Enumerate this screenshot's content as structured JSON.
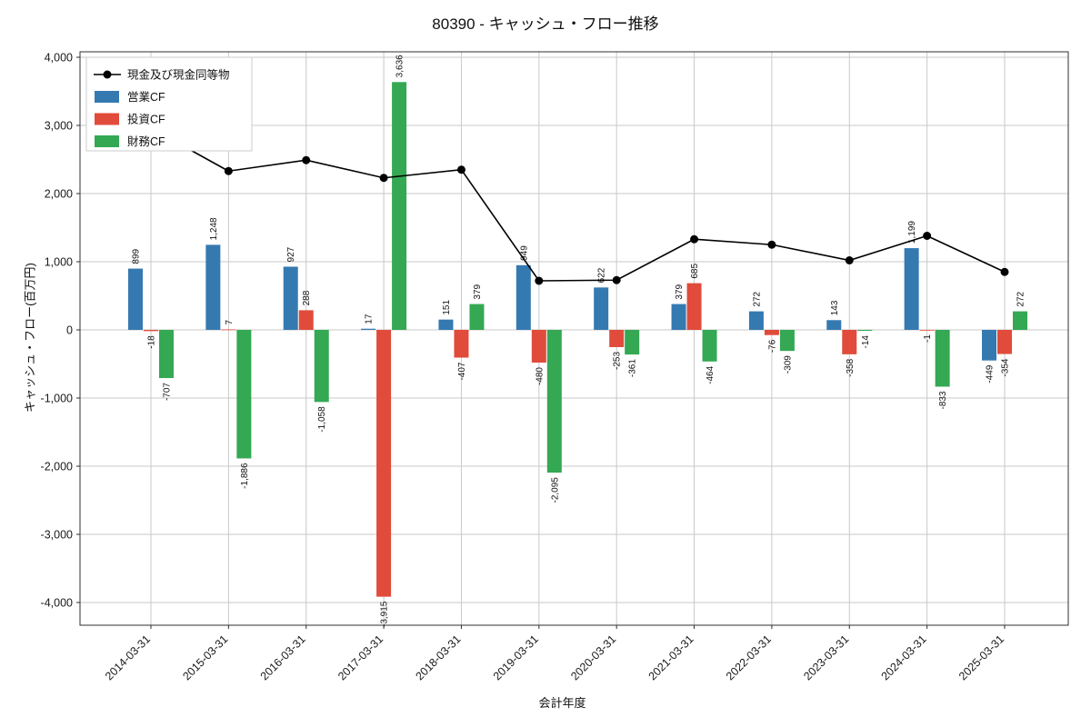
{
  "chart_data": {
    "type": "bar",
    "title": "80390 - キャッシュ・フロー推移",
    "xlabel": "会計年度",
    "ylabel": "キャッシュ・フロー(百万円)",
    "ylim": [
      -4000,
      4000
    ],
    "ytick_step": 1000,
    "grid": true,
    "legend_position": "upper-left",
    "categories": [
      "2014-03-31",
      "2015-03-31",
      "2016-03-31",
      "2017-03-31",
      "2018-03-31",
      "2019-03-31",
      "2020-03-31",
      "2021-03-31",
      "2022-03-31",
      "2023-03-31",
      "2024-03-31",
      "2025-03-31"
    ],
    "series": [
      {
        "name": "営業CF",
        "key": "operating-cf",
        "type": "bar",
        "color": "#3579b1",
        "values": [
          899,
          1248,
          927,
          17,
          151,
          949,
          622,
          379,
          272,
          143,
          1199,
          -449
        ]
      },
      {
        "name": "投資CF",
        "key": "investing-cf",
        "type": "bar",
        "color": "#e14b3b",
        "values": [
          -18,
          7,
          288,
          -3915,
          -407,
          -480,
          -253,
          685,
          -76,
          -358,
          -1,
          -354
        ]
      },
      {
        "name": "財務CF",
        "key": "financing-cf",
        "type": "bar",
        "color": "#34a853",
        "values": [
          -707,
          -1886,
          -1058,
          3636,
          379,
          -2095,
          -361,
          -464,
          -309,
          -14,
          -833,
          272
        ]
      },
      {
        "name": "現金及び現金同等物",
        "key": "cash-equivalents",
        "type": "line",
        "color": "#000000",
        "values": [
          2960,
          2330,
          2490,
          2230,
          2350,
          720,
          730,
          1330,
          1250,
          1020,
          1380,
          850
        ]
      }
    ],
    "legend": [
      "現金及び現金同等物",
      "営業CF",
      "投資CF",
      "財務CF"
    ]
  }
}
